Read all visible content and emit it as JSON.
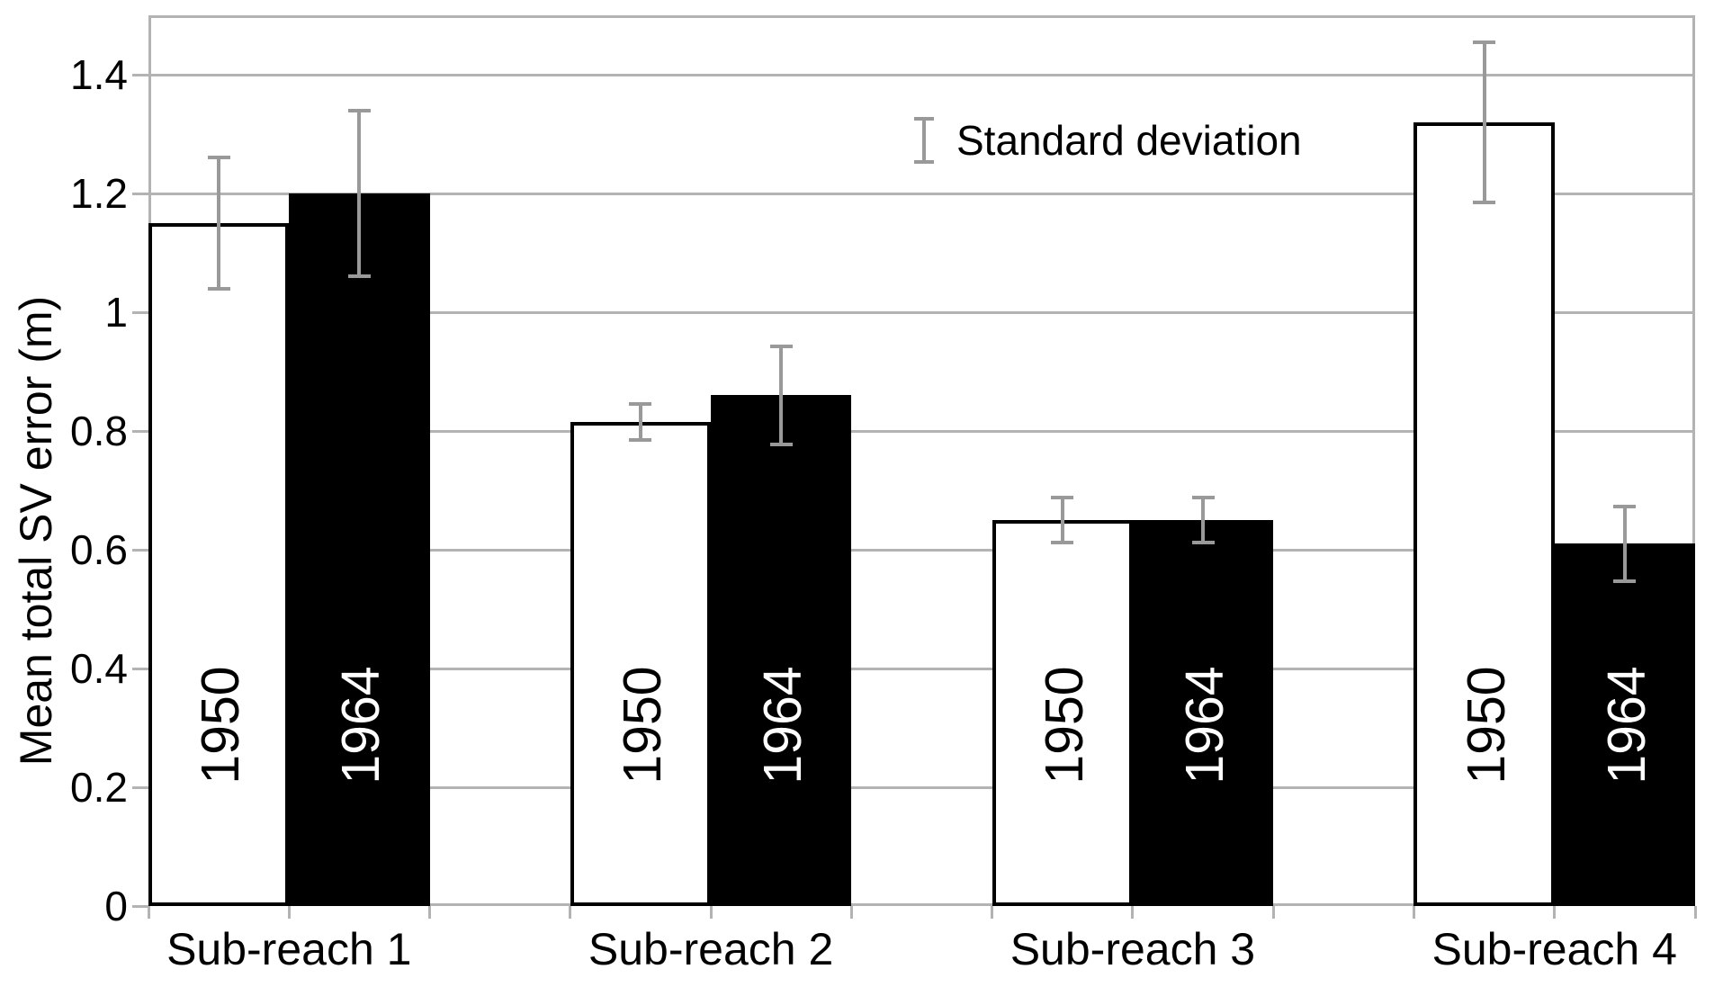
{
  "chart_data": {
    "type": "bar",
    "title": "",
    "xlabel": "",
    "ylabel": "Mean total SV error (m)",
    "ylim": [
      0,
      1.5
    ],
    "yticks": [
      0,
      0.2,
      0.4,
      0.6,
      0.8,
      1,
      1.2,
      1.4
    ],
    "ytick_labels": [
      "0",
      "0.2",
      "0.4",
      "0.6",
      "0.8",
      "1",
      "1.2",
      "1.4"
    ],
    "grid": "horizontal",
    "legend_position": "top-center",
    "legend_label": "Standard deviation",
    "categories": [
      "Sub-reach 1",
      "Sub-reach 2",
      "Sub-reach 3",
      "Sub-reach 4"
    ],
    "series": [
      {
        "name": "1950",
        "bar_fill": "#ffffff",
        "label_color": "#000000",
        "values": [
          1.15,
          0.815,
          0.65,
          1.32
        ],
        "std_dev": [
          0.11,
          0.03,
          0.038,
          0.135
        ]
      },
      {
        "name": "1964",
        "bar_fill": "#000000",
        "label_color": "#ffffff",
        "values": [
          1.2,
          0.86,
          0.65,
          0.61
        ],
        "std_dev": [
          0.14,
          0.082,
          0.038,
          0.063
        ]
      }
    ],
    "colors": {
      "grid": "#b3b3b3",
      "frame": "#b3b3b3",
      "tick": "#b3b3b3",
      "error_bar": "#999999",
      "bar_outline": "#000000",
      "background": "#ffffff"
    }
  }
}
